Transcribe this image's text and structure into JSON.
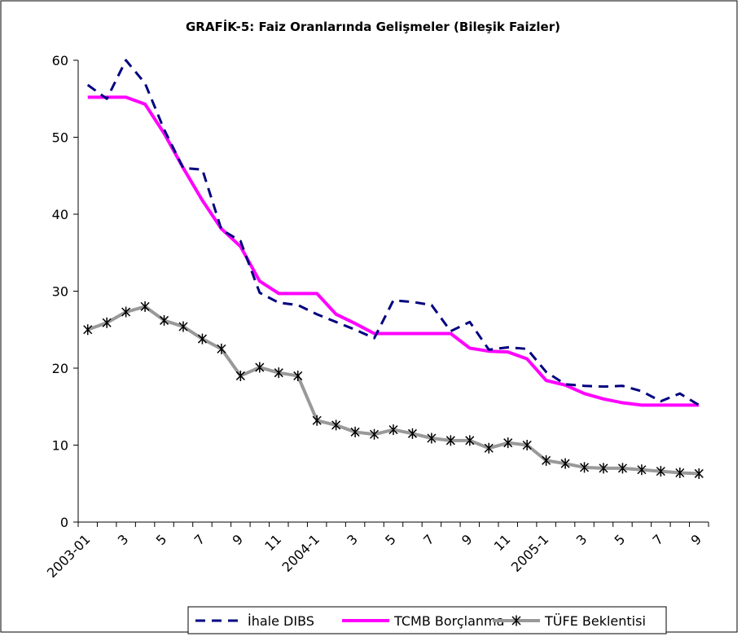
{
  "chart_data": {
    "type": "line",
    "title": "GRAFİK-5:  Faiz Oranlarında Gelişmeler (Bileşik Faizler)",
    "categories": [
      "2003-01",
      null,
      "3",
      null,
      "5",
      null,
      "7",
      null,
      "9",
      null,
      "11",
      null,
      "2004-1",
      null,
      "3",
      null,
      "5",
      null,
      "7",
      null,
      "9",
      null,
      "11",
      null,
      "2005-1",
      null,
      "3",
      null,
      "5",
      null,
      "7",
      null,
      "9"
    ],
    "series": [
      {
        "name": "İhale DIBS",
        "color": "#000080",
        "dash": true,
        "values": [
          56.8,
          55,
          60,
          57,
          51,
          46,
          45.8,
          38,
          36.5,
          29.8,
          28.5,
          28.2,
          27,
          26,
          25,
          23.9,
          28.8,
          28.6,
          28.2,
          24.8,
          26,
          22.4,
          22.7,
          22.5,
          19.5,
          17.9,
          17.7,
          17.6,
          17.7,
          17,
          15.7,
          16.7,
          15.2
        ]
      },
      {
        "name": "TCMB Borçlanma",
        "color": "#ff00ff",
        "values": [
          55.2,
          55.2,
          55.2,
          54.3,
          50.5,
          46,
          41.8,
          38.1,
          35.8,
          31.3,
          29.7,
          29.7,
          29.7,
          27,
          25.8,
          24.5,
          24.5,
          24.5,
          24.5,
          24.5,
          22.6,
          22.2,
          22.1,
          21.2,
          18.4,
          17.8,
          16.7,
          16,
          15.5,
          15.2,
          15.2,
          15.2,
          15.2
        ]
      },
      {
        "name": "TÜFE Beklentisi",
        "color": "#999999",
        "marker": "star",
        "marker_color": "#000000",
        "values": [
          25,
          25.9,
          27.3,
          28,
          26.2,
          25.4,
          23.8,
          22.5,
          19,
          20.1,
          19.4,
          19,
          13.2,
          12.6,
          11.7,
          11.4,
          12,
          11.5,
          10.9,
          10.6,
          10.6,
          9.6,
          10.3,
          10,
          8,
          7.6,
          7.1,
          7,
          7,
          6.8,
          6.6,
          6.4,
          6.3
        ]
      }
    ],
    "ylim": [
      0,
      60
    ],
    "yticks": [
      0,
      10,
      20,
      30,
      40,
      50,
      60
    ],
    "grid": false,
    "legend": "bottom"
  }
}
